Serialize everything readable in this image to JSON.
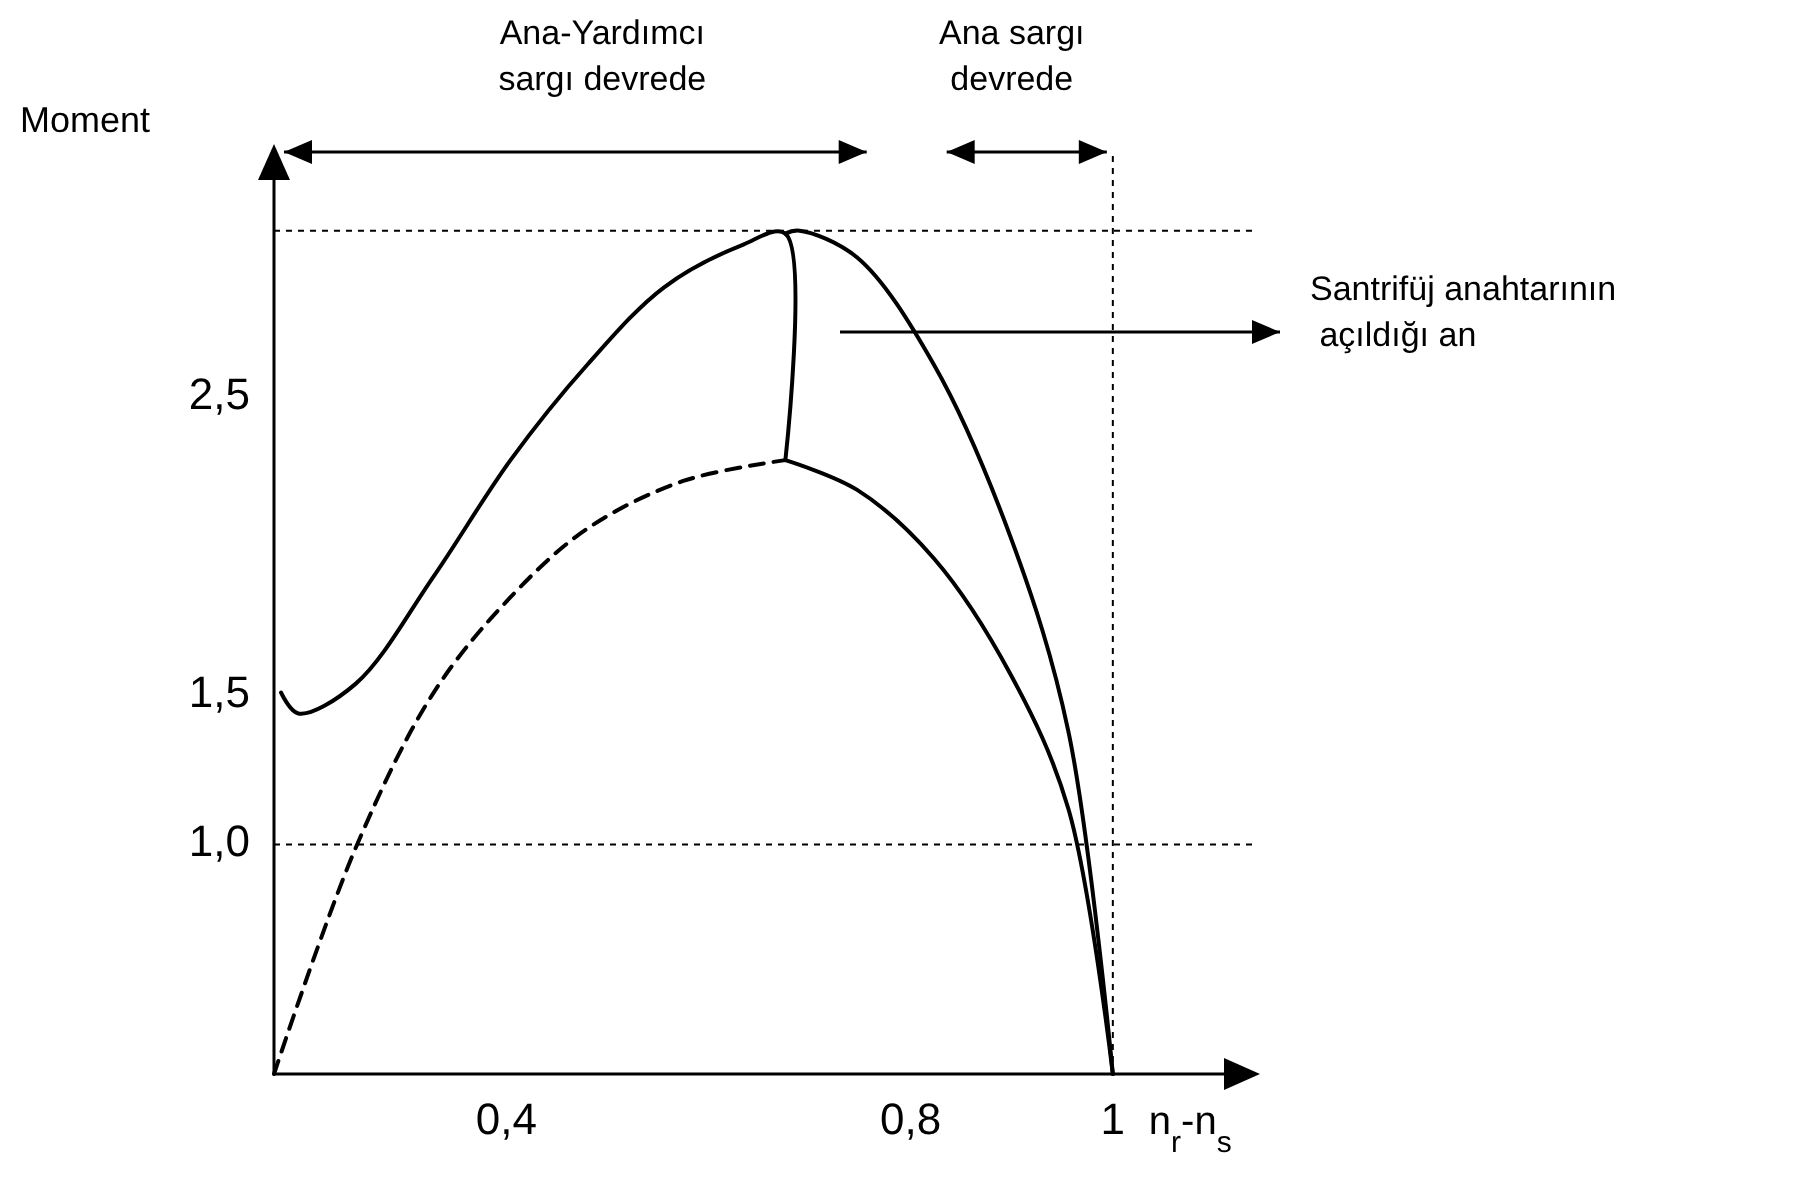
{
  "chart_data": {
    "type": "line",
    "xlabel": "n$_{r}$-n$_{s}$",
    "ylabel": "Moment",
    "xlim": [
      0.17,
      1.11
    ],
    "ylim": [
      0.23,
      3.23
    ],
    "xticks": [
      {
        "value": 0.4,
        "label": "0,4"
      },
      {
        "value": 0.8,
        "label": "0,8"
      },
      {
        "value": 1,
        "label": "1"
      }
    ],
    "yticks": [
      {
        "value": 1,
        "label": "1,0"
      },
      {
        "value": 1.5,
        "label": "1,5"
      },
      {
        "value": 2.5,
        "label": "2,5"
      }
    ],
    "grid": false,
    "series": [
      {
        "color": "#000000",
        "line_style": "solid",
        "x": [
          0.177,
          0.194,
          0.251,
          0.328,
          0.404,
          0.48,
          0.556,
          0.632,
          0.676,
          0.676
        ],
        "values": [
          1.51,
          1.44,
          1.54,
          1.9,
          2.29,
          2.61,
          2.87,
          3.01,
          3.05,
          2.29
        ]
      },
      {
        "color": "#000000",
        "line_style": "solid",
        "x": [
          0.676,
          0.69,
          0.747,
          0.823,
          0.899,
          0.956,
          1.0
        ],
        "values": [
          3.05,
          3.06,
          2.97,
          2.61,
          2.03,
          1.38,
          0.23
        ]
      },
      {
        "color": "#000000",
        "line_style": "dashed",
        "x": [
          0.17,
          0.251,
          0.328,
          0.404,
          0.48,
          0.575,
          0.676
        ],
        "values": [
          0.23,
          0.99,
          1.51,
          1.83,
          2.06,
          2.22,
          2.29
        ]
      },
      {
        "color": "#000000",
        "line_style": "solid",
        "x": [
          0.676,
          0.747,
          0.823,
          0.899,
          0.956,
          1.0
        ],
        "values": [
          2.29,
          2.19,
          1.96,
          1.57,
          1.12,
          0.23
        ]
      }
    ],
    "ref_lines": [
      {
        "axis": "y",
        "value": 3.06,
        "line_style": "dotted",
        "color": "#000000"
      },
      {
        "axis": "y",
        "value": 1,
        "line_style": "dotted",
        "color": "#000000"
      },
      {
        "axis": "x",
        "value": 1,
        "line_style": "dotted",
        "color": "#000000"
      }
    ],
    "annotations": [
      "Ana-Yardımcı\nsargı devrede",
      "Ana sargı\ndevrede",
      "Santrifüj anahtarının\n açıldığı an"
    ]
  }
}
